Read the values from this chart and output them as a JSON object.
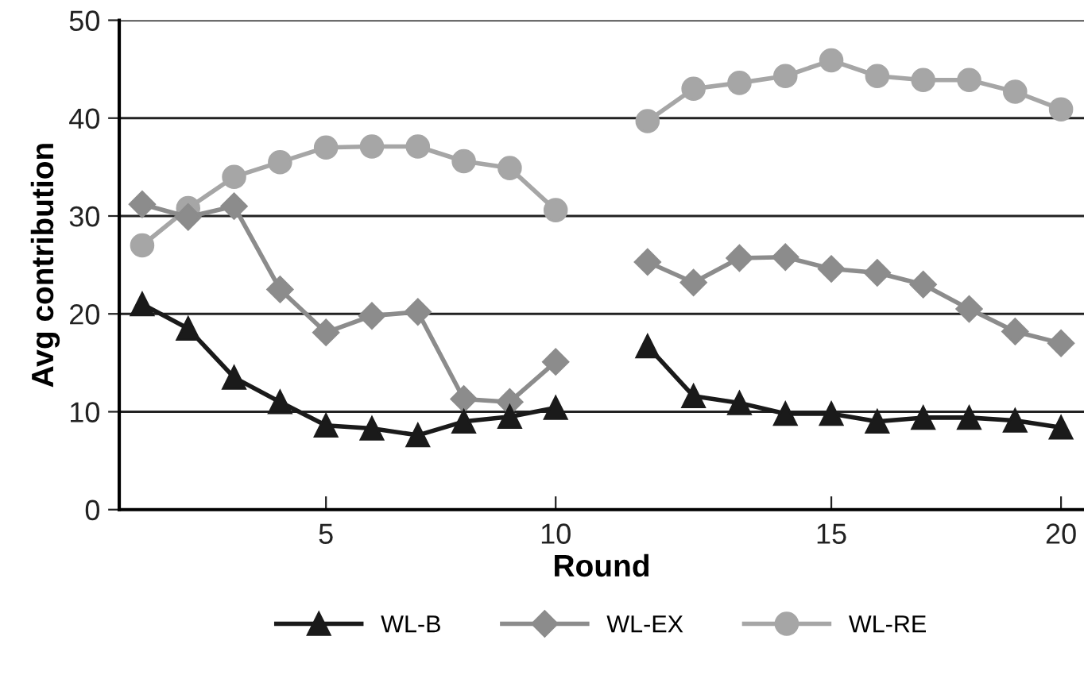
{
  "chart_data": {
    "type": "line",
    "xlabel": "Round",
    "ylabel": "Avg contribution",
    "categories": [
      null,
      null,
      null,
      null,
      "5",
      null,
      null,
      null,
      null,
      "10",
      null,
      null,
      null,
      null,
      null,
      "15",
      null,
      null,
      null,
      null,
      "20"
    ],
    "series": [
      {
        "name": "WL-B",
        "color": "#1a1a1a",
        "marker": "triangle",
        "values": [
          21,
          18.5,
          13.5,
          11,
          8.6,
          8.3,
          7.6,
          9,
          9.5,
          10.4,
          null,
          16.7,
          11.6,
          10.9,
          9.8,
          9.8,
          9.0,
          9.4,
          9.4,
          9.1,
          8.4
        ]
      },
      {
        "name": "WL-EX",
        "color": "#8c8c8c",
        "marker": "diamond",
        "values": [
          31.2,
          29.9,
          31.0,
          22.5,
          18.1,
          19.8,
          20.2,
          11.3,
          11.0,
          15.1,
          null,
          25.3,
          23.2,
          25.7,
          25.8,
          24.6,
          24.2,
          23.0,
          20.5,
          18.2,
          17.0
        ]
      },
      {
        "name": "WL-RE",
        "color": "#a6a6a6",
        "marker": "circle",
        "values": [
          27.0,
          30.8,
          34.0,
          35.5,
          37.0,
          37.1,
          37.1,
          35.6,
          34.9,
          30.6,
          null,
          39.7,
          43.0,
          43.6,
          44.3,
          45.9,
          44.3,
          43.9,
          43.9,
          42.7,
          40.9
        ]
      }
    ],
    "ylim": [
      0,
      50
    ],
    "yticks": [
      0,
      10,
      20,
      30,
      40,
      50
    ],
    "grid": "y",
    "legend": "bottom",
    "line_style": "solid"
  }
}
